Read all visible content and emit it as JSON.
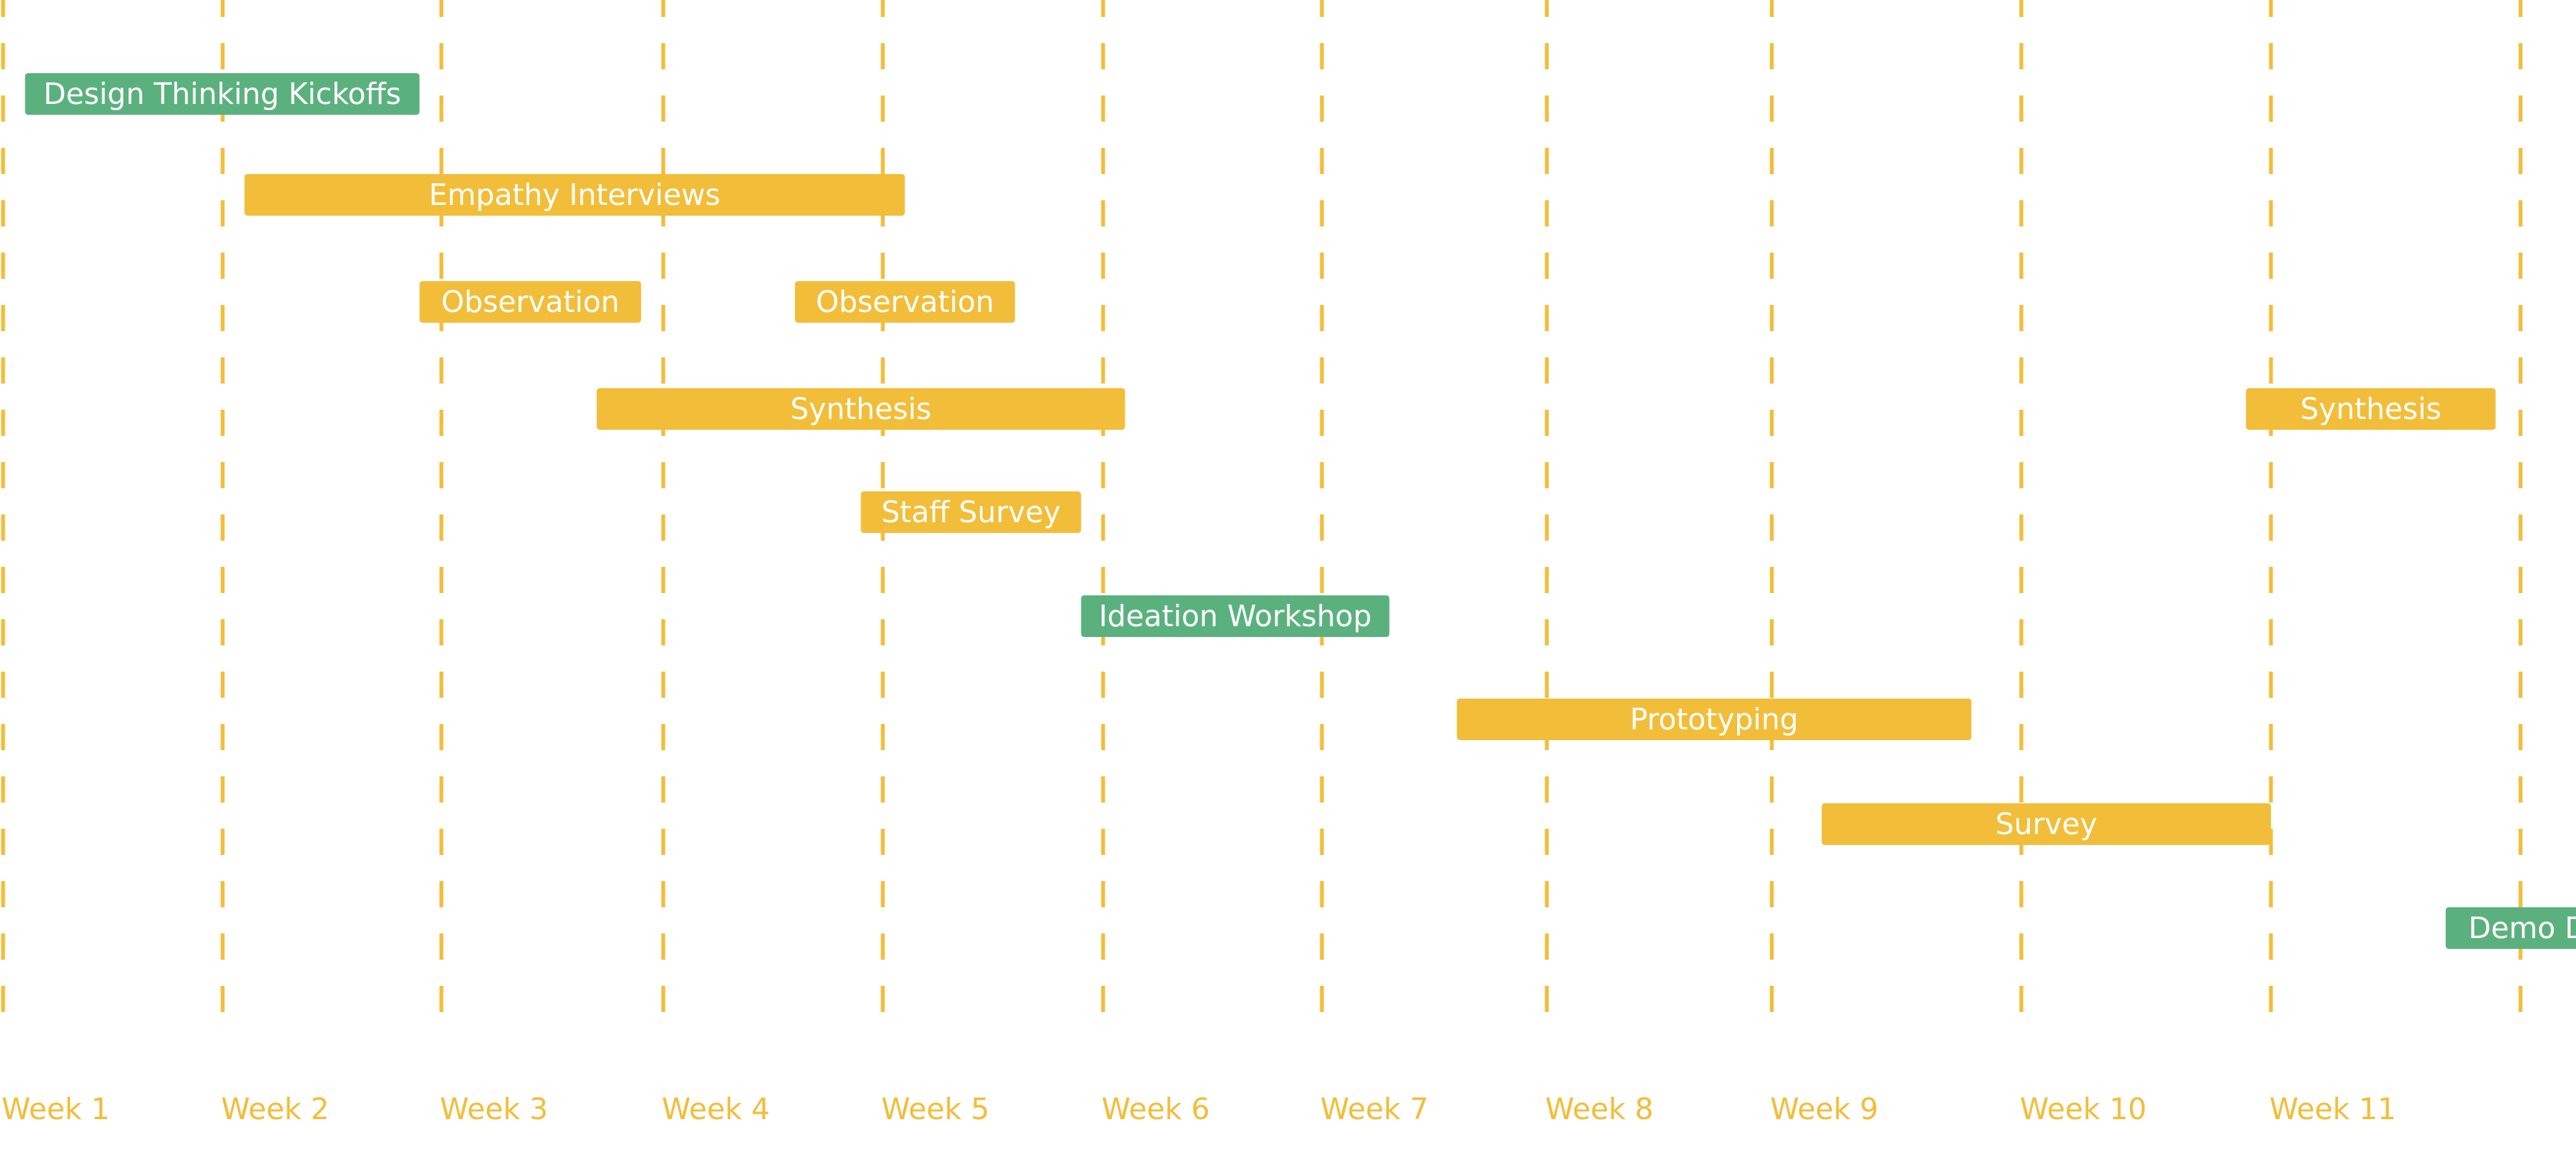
{
  "chart_data": {
    "type": "gantt",
    "colors": {
      "gridline": "#f2bd38",
      "week_label": "#f2bd38",
      "milestone": "#5bb17e",
      "activity": "#f2bd38",
      "bar_text": "#ffffff"
    },
    "weeks": [
      "Week 1",
      "Week 2",
      "Week 3",
      "Week 4",
      "Week 5",
      "Week 6",
      "Week 7",
      "Week 8",
      "Week 9",
      "Week 10",
      "Week 11"
    ],
    "tasks": [
      {
        "label": "Design Thinking Kickoffs",
        "kind": "milestone",
        "row": 0,
        "start": 1.1,
        "end": 2.9
      },
      {
        "label": "Empathy Interviews",
        "kind": "activity",
        "row": 1,
        "start": 2.1,
        "end": 5.1
      },
      {
        "label": "Observation",
        "kind": "activity",
        "row": 2,
        "start": 2.9,
        "end": 3.9
      },
      {
        "label": "Observation",
        "kind": "activity",
        "row": 2,
        "start": 4.6,
        "end": 5.6
      },
      {
        "label": "Synthesis",
        "kind": "activity",
        "row": 3,
        "start": 3.7,
        "end": 6.1
      },
      {
        "label": "Synthesis",
        "kind": "activity",
        "row": 3,
        "start": 10.9,
        "end": 11.9
      },
      {
        "label": "Staff Survey",
        "kind": "activity",
        "row": 4,
        "start": 4.9,
        "end": 5.9
      },
      {
        "label": "Ideation Workshop",
        "kind": "milestone",
        "row": 5,
        "start": 5.9,
        "end": 7.3
      },
      {
        "label": "Prototyping",
        "kind": "activity",
        "row": 6,
        "start": 7.6,
        "end": 9.8
      },
      {
        "label": "Survey",
        "kind": "activity",
        "row": 7,
        "start": 9.2,
        "end": 11.0
      },
      {
        "label": "Demo Day",
        "kind": "milestone",
        "row": 8,
        "start": 11.7,
        "end": 12.5
      }
    ]
  }
}
